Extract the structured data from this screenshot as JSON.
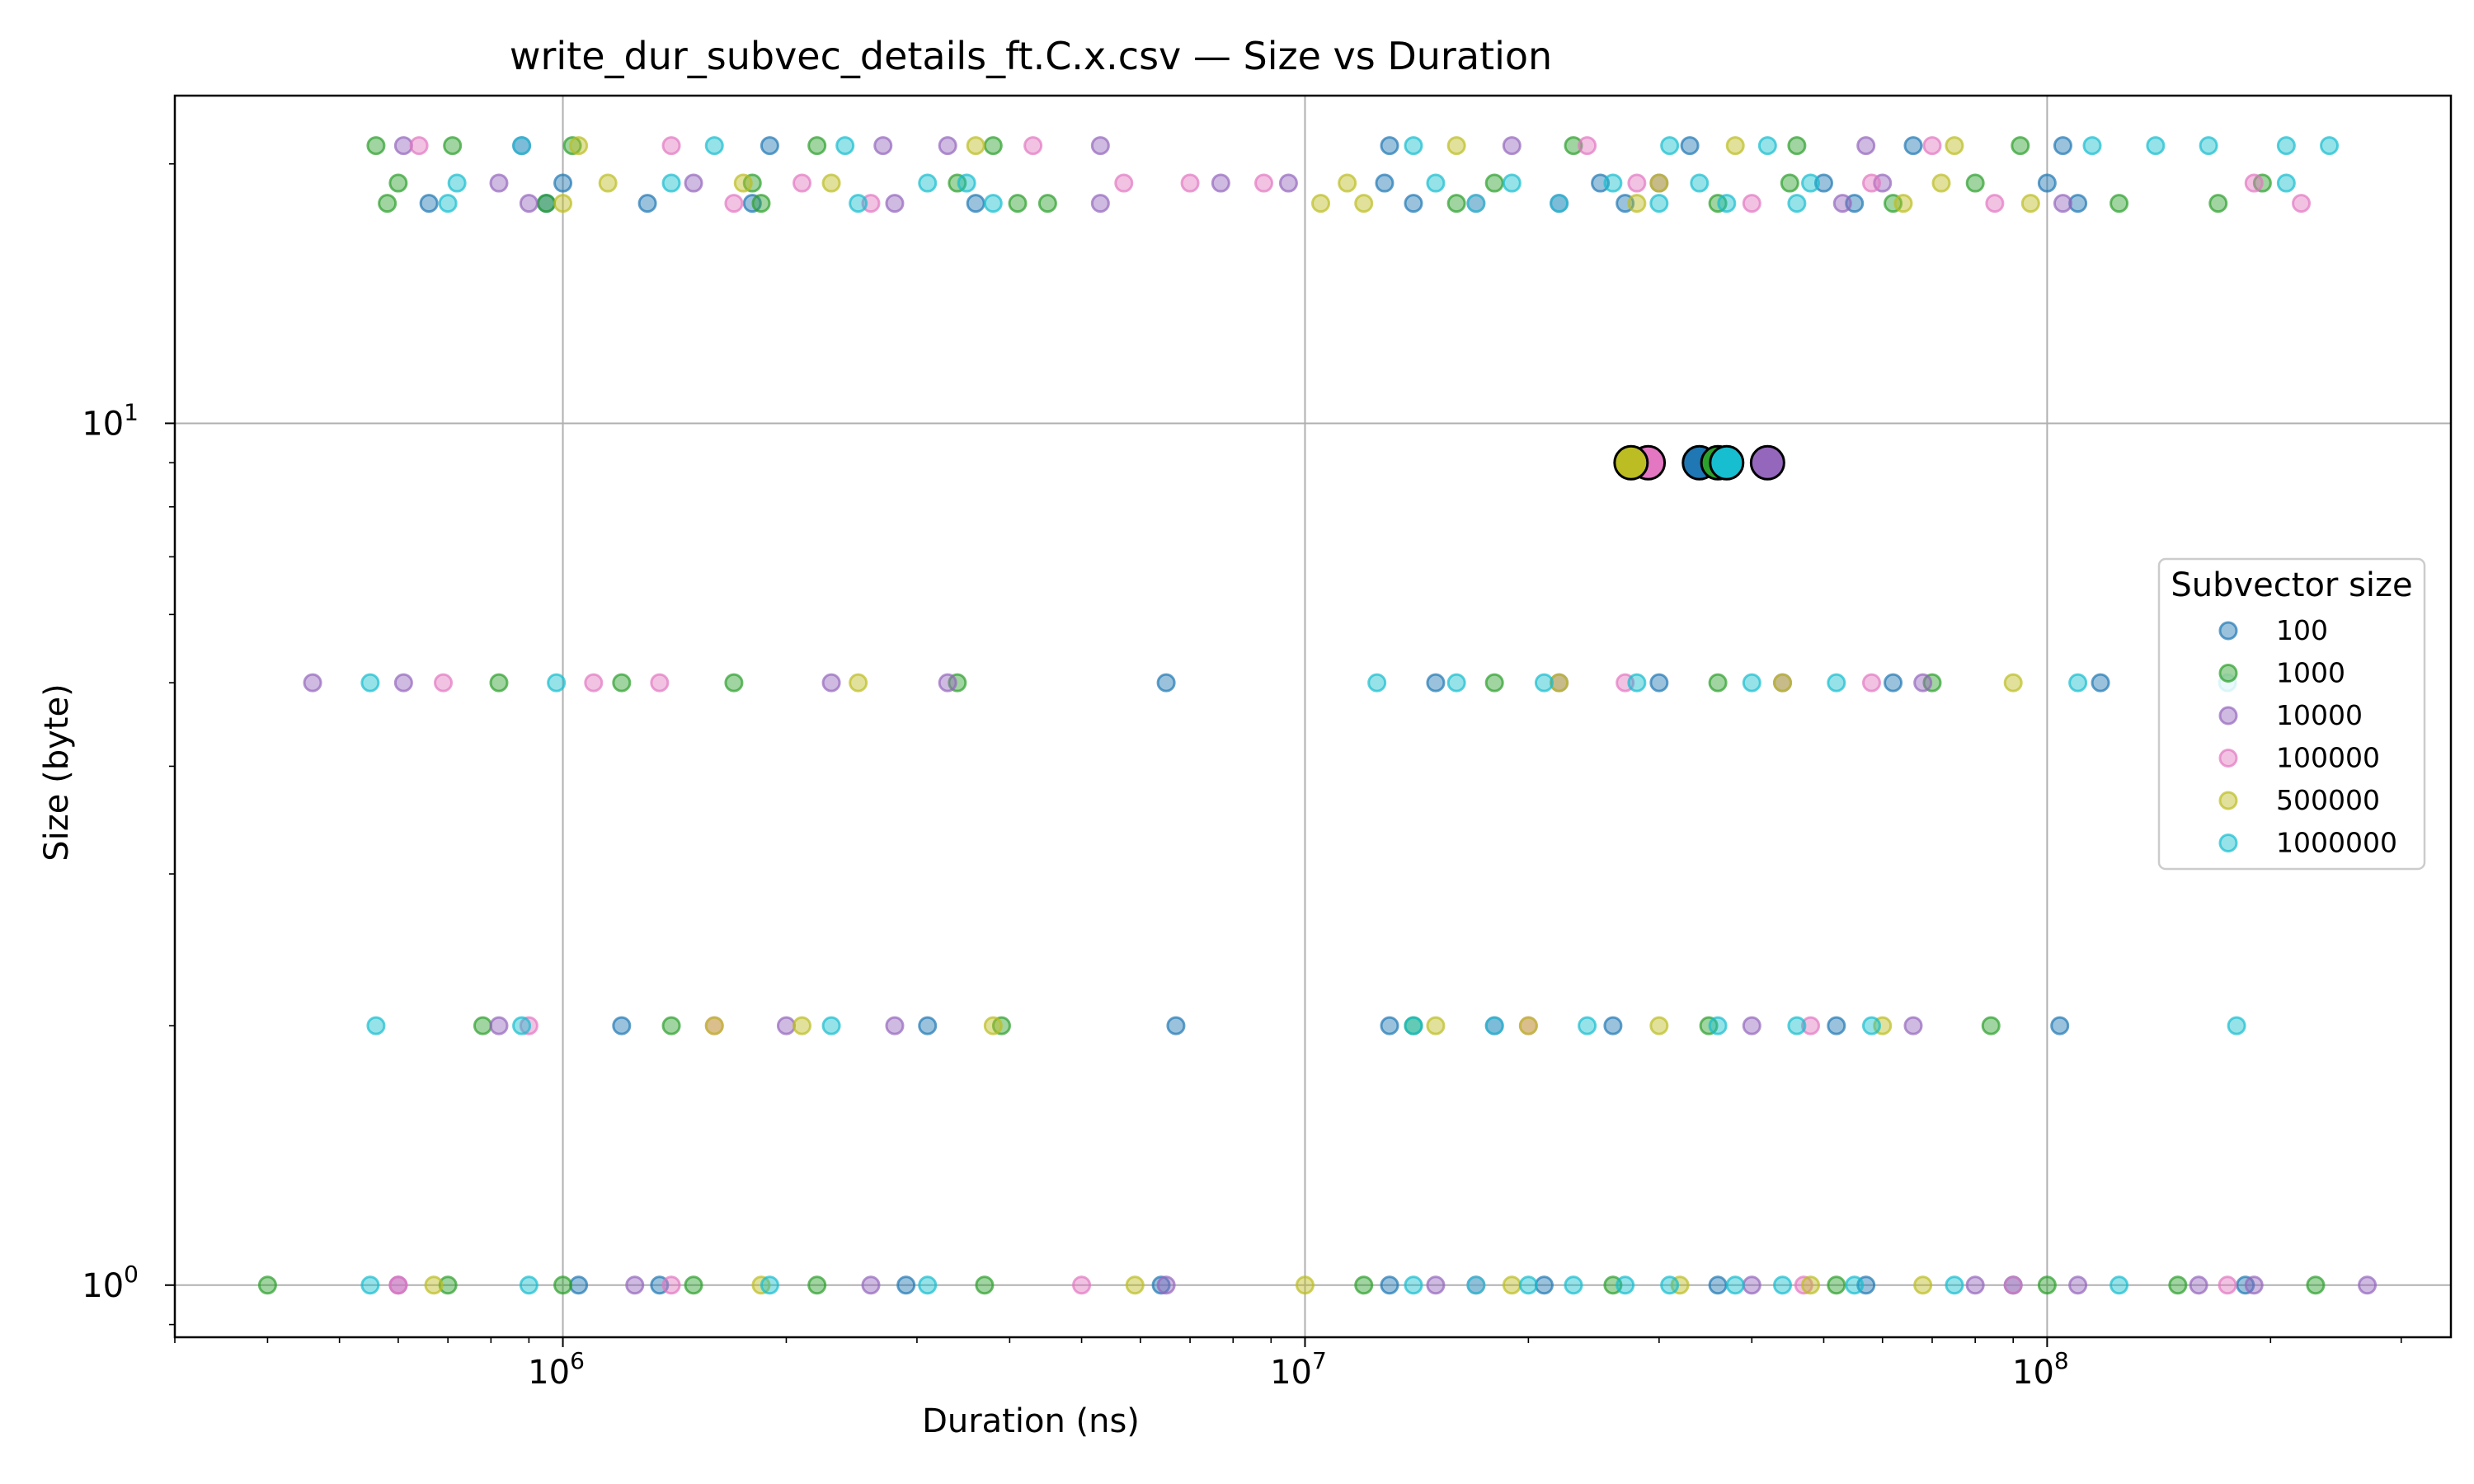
{
  "chart_data": {
    "type": "scatter",
    "title": "write_dur_subvec_details_ft.C.x.csv — Size vs Duration",
    "xlabel": "Duration (ns)",
    "ylabel": "Size (byte)",
    "xscale": "log",
    "yscale": "log",
    "xlim": [
      300000,
      350000000
    ],
    "ylim": [
      0.87,
      24
    ],
    "grid": true,
    "x_ticks": [
      {
        "value": 1000000,
        "base": "10",
        "exp": "6"
      },
      {
        "value": 10000000,
        "base": "10",
        "exp": "7"
      },
      {
        "value": 100000000,
        "base": "10",
        "exp": "8"
      }
    ],
    "y_ticks": [
      {
        "value": 1,
        "base": "10",
        "exp": "0"
      },
      {
        "value": 10,
        "base": "10",
        "exp": "1"
      }
    ],
    "legend": {
      "title": "Subvector size",
      "placement": "center-right"
    },
    "series": [
      {
        "name": "100",
        "color": "#1f77b4",
        "points": [
          [
            1050000,
            1
          ],
          [
            1350000,
            1
          ],
          [
            2900000,
            1
          ],
          [
            6400000,
            1
          ],
          [
            13000000,
            1
          ],
          [
            21000000,
            1
          ],
          [
            36000000,
            1
          ],
          [
            57000000,
            1
          ],
          [
            90000000,
            1
          ],
          [
            185000000,
            1
          ],
          [
            1200000,
            2
          ],
          [
            3100000,
            2
          ],
          [
            6700000,
            2
          ],
          [
            13000000,
            2
          ],
          [
            26000000,
            2
          ],
          [
            52000000,
            2
          ],
          [
            104000000,
            2
          ],
          [
            6500000,
            5
          ],
          [
            15000000,
            5
          ],
          [
            30000000,
            5
          ],
          [
            62000000,
            5
          ],
          [
            118000000,
            5
          ],
          [
            660000,
            18
          ],
          [
            950000,
            18
          ],
          [
            1300000,
            18
          ],
          [
            1800000,
            18
          ],
          [
            3600000,
            18
          ],
          [
            14000000,
            18
          ],
          [
            27000000,
            18
          ],
          [
            55000000,
            18
          ],
          [
            110000000,
            18
          ],
          [
            1000000,
            19
          ],
          [
            12800000,
            19
          ],
          [
            25000000,
            19
          ],
          [
            50000000,
            19
          ],
          [
            100000000,
            19
          ],
          [
            1900000,
            21
          ],
          [
            13000000,
            21
          ],
          [
            33000000,
            21
          ],
          [
            66000000,
            21
          ],
          [
            105000000,
            21
          ]
        ],
        "mean": [
          34000000,
          9
        ]
      },
      {
        "name": "1000",
        "color": "#2ca02c",
        "points": [
          [
            400000,
            1
          ],
          [
            700000,
            1
          ],
          [
            1000000,
            1
          ],
          [
            1500000,
            1
          ],
          [
            2200000,
            1
          ],
          [
            3700000,
            1
          ],
          [
            12000000,
            1
          ],
          [
            26000000,
            1
          ],
          [
            52000000,
            1
          ],
          [
            100000000,
            1
          ],
          [
            150000000,
            1
          ],
          [
            230000000,
            1
          ],
          [
            780000,
            2
          ],
          [
            1400000,
            2
          ],
          [
            3900000,
            2
          ],
          [
            14000000,
            2
          ],
          [
            35000000,
            2
          ],
          [
            84000000,
            2
          ],
          [
            820000,
            5
          ],
          [
            1200000,
            5
          ],
          [
            1700000,
            5
          ],
          [
            3400000,
            5
          ],
          [
            18000000,
            5
          ],
          [
            36000000,
            5
          ],
          [
            70000000,
            5
          ],
          [
            580000,
            18
          ],
          [
            950000,
            18
          ],
          [
            1850000,
            18
          ],
          [
            4100000,
            18
          ],
          [
            4500000,
            18
          ],
          [
            16000000,
            18
          ],
          [
            36000000,
            18
          ],
          [
            62000000,
            18
          ],
          [
            125000000,
            18
          ],
          [
            170000000,
            18
          ],
          [
            600000,
            19
          ],
          [
            1800000,
            19
          ],
          [
            3400000,
            19
          ],
          [
            18000000,
            19
          ],
          [
            45000000,
            19
          ],
          [
            80000000,
            19
          ],
          [
            195000000,
            19
          ],
          [
            560000,
            21
          ],
          [
            710000,
            21
          ],
          [
            1030000,
            21
          ],
          [
            2200000,
            21
          ],
          [
            3800000,
            21
          ],
          [
            23000000,
            21
          ],
          [
            46000000,
            21
          ],
          [
            92000000,
            21
          ]
        ],
        "mean": [
          36000000,
          9
        ]
      },
      {
        "name": "10000",
        "color": "#9467bd",
        "points": [
          [
            600000,
            1
          ],
          [
            1250000,
            1
          ],
          [
            2600000,
            1
          ],
          [
            6500000,
            1
          ],
          [
            15000000,
            1
          ],
          [
            40000000,
            1
          ],
          [
            80000000,
            1
          ],
          [
            110000000,
            1
          ],
          [
            160000000,
            1
          ],
          [
            190000000,
            1
          ],
          [
            270000000,
            1
          ],
          [
            820000,
            2
          ],
          [
            2000000,
            2
          ],
          [
            2800000,
            2
          ],
          [
            18000000,
            2
          ],
          [
            40000000,
            2
          ],
          [
            66000000,
            2
          ],
          [
            460000,
            5
          ],
          [
            610000,
            5
          ],
          [
            2300000,
            5
          ],
          [
            3300000,
            5
          ],
          [
            22000000,
            5
          ],
          [
            44000000,
            5
          ],
          [
            68000000,
            5
          ],
          [
            900000,
            18
          ],
          [
            2800000,
            18
          ],
          [
            5300000,
            18
          ],
          [
            22000000,
            18
          ],
          [
            53000000,
            18
          ],
          [
            105000000,
            18
          ],
          [
            820000,
            19
          ],
          [
            1500000,
            19
          ],
          [
            7700000,
            19
          ],
          [
            9500000,
            19
          ],
          [
            30000000,
            19
          ],
          [
            60000000,
            19
          ],
          [
            610000,
            21
          ],
          [
            880000,
            21
          ],
          [
            2700000,
            21
          ],
          [
            3300000,
            21
          ],
          [
            5300000,
            21
          ],
          [
            19000000,
            21
          ],
          [
            57000000,
            21
          ]
        ],
        "mean": [
          42000000,
          9
        ]
      },
      {
        "name": "100000",
        "color": "#e377c2",
        "points": [
          [
            600000,
            1
          ],
          [
            1400000,
            1
          ],
          [
            5000000,
            1
          ],
          [
            17000000,
            1
          ],
          [
            47000000,
            1
          ],
          [
            90000000,
            1
          ],
          [
            175000000,
            1
          ],
          [
            900000,
            2
          ],
          [
            1600000,
            2
          ],
          [
            20000000,
            2
          ],
          [
            48000000,
            2
          ],
          [
            690000,
            5
          ],
          [
            1100000,
            5
          ],
          [
            1350000,
            5
          ],
          [
            27000000,
            5
          ],
          [
            58000000,
            5
          ],
          [
            1700000,
            18
          ],
          [
            2600000,
            18
          ],
          [
            17000000,
            18
          ],
          [
            40000000,
            18
          ],
          [
            85000000,
            18
          ],
          [
            220000000,
            18
          ],
          [
            2100000,
            19
          ],
          [
            5700000,
            19
          ],
          [
            7000000,
            19
          ],
          [
            8800000,
            19
          ],
          [
            28000000,
            19
          ],
          [
            58000000,
            19
          ],
          [
            190000000,
            19
          ],
          [
            640000,
            21
          ],
          [
            1400000,
            21
          ],
          [
            4300000,
            21
          ],
          [
            24000000,
            21
          ],
          [
            70000000,
            21
          ]
        ],
        "mean": [
          29000000,
          9
        ]
      },
      {
        "name": "500000",
        "color": "#bcbd22",
        "points": [
          [
            670000,
            1
          ],
          [
            1850000,
            1
          ],
          [
            5900000,
            1
          ],
          [
            10000000,
            1
          ],
          [
            19000000,
            1
          ],
          [
            32000000,
            1
          ],
          [
            48000000,
            1
          ],
          [
            68000000,
            1
          ],
          [
            1600000,
            2
          ],
          [
            2100000,
            2
          ],
          [
            3800000,
            2
          ],
          [
            15000000,
            2
          ],
          [
            20000000,
            2
          ],
          [
            30000000,
            2
          ],
          [
            60000000,
            2
          ],
          [
            2500000,
            5
          ],
          [
            22000000,
            5
          ],
          [
            44000000,
            5
          ],
          [
            90000000,
            5
          ],
          [
            1000000,
            18
          ],
          [
            10500000,
            18
          ],
          [
            12000000,
            18
          ],
          [
            28000000,
            18
          ],
          [
            64000000,
            18
          ],
          [
            95000000,
            18
          ],
          [
            1150000,
            19
          ],
          [
            1750000,
            19
          ],
          [
            2300000,
            19
          ],
          [
            11400000,
            19
          ],
          [
            30000000,
            19
          ],
          [
            72000000,
            19
          ],
          [
            1050000,
            21
          ],
          [
            3600000,
            21
          ],
          [
            16000000,
            21
          ],
          [
            38000000,
            21
          ],
          [
            75000000,
            21
          ]
        ],
        "mean": [
          27500000,
          9
        ]
      },
      {
        "name": "1000000",
        "color": "#17becf",
        "points": [
          [
            550000,
            1
          ],
          [
            900000,
            1
          ],
          [
            1900000,
            1
          ],
          [
            3100000,
            1
          ],
          [
            14000000,
            1
          ],
          [
            17000000,
            1
          ],
          [
            20000000,
            1
          ],
          [
            23000000,
            1
          ],
          [
            27000000,
            1
          ],
          [
            31000000,
            1
          ],
          [
            38000000,
            1
          ],
          [
            44000000,
            1
          ],
          [
            55000000,
            1
          ],
          [
            75000000,
            1
          ],
          [
            125000000,
            1
          ],
          [
            560000,
            2
          ],
          [
            880000,
            2
          ],
          [
            2300000,
            2
          ],
          [
            14000000,
            2
          ],
          [
            18000000,
            2
          ],
          [
            24000000,
            2
          ],
          [
            36000000,
            2
          ],
          [
            46000000,
            2
          ],
          [
            58000000,
            2
          ],
          [
            180000000,
            2
          ],
          [
            550000,
            5
          ],
          [
            980000,
            5
          ],
          [
            12500000,
            5
          ],
          [
            16000000,
            5
          ],
          [
            21000000,
            5
          ],
          [
            28000000,
            5
          ],
          [
            40000000,
            5
          ],
          [
            52000000,
            5
          ],
          [
            110000000,
            5
          ],
          [
            175000000,
            5
          ],
          [
            700000,
            18
          ],
          [
            2500000,
            18
          ],
          [
            3800000,
            18
          ],
          [
            17000000,
            18
          ],
          [
            22000000,
            18
          ],
          [
            30000000,
            18
          ],
          [
            37000000,
            18
          ],
          [
            46000000,
            18
          ],
          [
            720000,
            19
          ],
          [
            1400000,
            19
          ],
          [
            3100000,
            19
          ],
          [
            3500000,
            19
          ],
          [
            15000000,
            19
          ],
          [
            19000000,
            19
          ],
          [
            26000000,
            19
          ],
          [
            34000000,
            19
          ],
          [
            48000000,
            19
          ],
          [
            210000000,
            19
          ],
          [
            880000,
            21
          ],
          [
            1600000,
            21
          ],
          [
            2400000,
            21
          ],
          [
            14000000,
            21
          ],
          [
            31000000,
            21
          ],
          [
            42000000,
            21
          ],
          [
            115000000,
            21
          ],
          [
            140000000,
            21
          ],
          [
            165000000,
            21
          ],
          [
            210000000,
            21
          ],
          [
            240000000,
            21
          ]
        ],
        "mean": [
          37000000,
          9
        ]
      }
    ]
  }
}
